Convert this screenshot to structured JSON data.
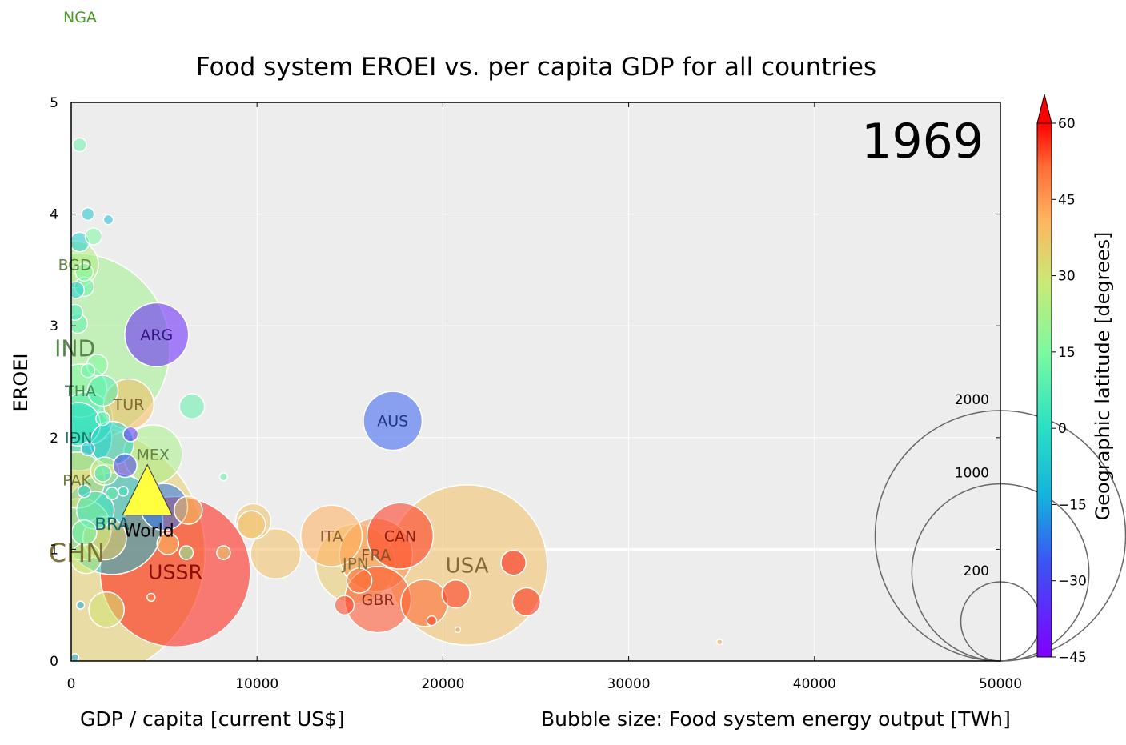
{
  "chart_data": {
    "type": "scatter",
    "title": "Food system EROEI vs. per capita GDP for all countries",
    "year_label": "1969",
    "stray_label": "NGA",
    "xlabel": "GDP / capita [current US$]",
    "ylabel": "EROEI",
    "size_label": "Bubble size: Food system energy output [TWh]",
    "colorbar_label": "Geographic latitude [degrees]",
    "xlim": [
      0,
      50000
    ],
    "ylim": [
      0,
      5
    ],
    "x_ticks": [
      0,
      10000,
      20000,
      30000,
      40000,
      50000
    ],
    "y_ticks": [
      0,
      1,
      2,
      3,
      4,
      5
    ],
    "colorbar_ticks": [
      60,
      45,
      30,
      15,
      0,
      -15,
      -30,
      -45
    ],
    "colorbar_range": [
      -45,
      60
    ],
    "grid": true,
    "reference_line_y": 1.0,
    "size_legend": [
      200,
      1000,
      2000
    ],
    "labeled_points": [
      {
        "label": "CHN",
        "x": 300,
        "y": 0.97,
        "size": 2100,
        "lat": 35
      },
      {
        "label": "IND",
        "x": 200,
        "y": 2.8,
        "size": 1150,
        "lat": 21
      },
      {
        "label": "USSR",
        "x": 5600,
        "y": 0.8,
        "size": 720,
        "lat": 58
      },
      {
        "label": "USA",
        "x": 21300,
        "y": 0.86,
        "size": 820,
        "lat": 38
      },
      {
        "label": "FRA",
        "x": 16400,
        "y": 0.95,
        "size": 170,
        "lat": 46
      },
      {
        "label": "JPN",
        "x": 15300,
        "y": 0.87,
        "size": 200,
        "lat": 36
      },
      {
        "label": "ITA",
        "x": 14000,
        "y": 1.12,
        "size": 120,
        "lat": 42
      },
      {
        "label": "GBR",
        "x": 16500,
        "y": 0.55,
        "size": 140,
        "lat": 54
      },
      {
        "label": "CAN",
        "x": 17700,
        "y": 1.12,
        "size": 140,
        "lat": 56
      },
      {
        "label": "AUS",
        "x": 17300,
        "y": 2.15,
        "size": 110,
        "lat": -25
      },
      {
        "label": "ARG",
        "x": 4600,
        "y": 2.92,
        "size": 130,
        "lat": -38
      },
      {
        "label": "TUR",
        "x": 3100,
        "y": 2.3,
        "size": 80,
        "lat": 39
      },
      {
        "label": "MEX",
        "x": 4400,
        "y": 1.85,
        "size": 110,
        "lat": 23
      },
      {
        "label": "BRA",
        "x": 2200,
        "y": 1.23,
        "size": 330,
        "lat": -10
      },
      {
        "label": "IDN",
        "x": 400,
        "y": 2.0,
        "size": 140,
        "lat": -2
      },
      {
        "label": "THA",
        "x": 500,
        "y": 2.42,
        "size": 90,
        "lat": 15
      },
      {
        "label": "BGD",
        "x": 200,
        "y": 3.55,
        "size": 70,
        "lat": 24
      },
      {
        "label": "PAK",
        "x": 300,
        "y": 1.62,
        "size": 100,
        "lat": 30
      }
    ],
    "world_point": {
      "label": "World",
      "x": 4100,
      "y": 1.55
    },
    "other_points": [
      {
        "x": 450,
        "y": 4.62,
        "size": 6,
        "lat": 12
      },
      {
        "x": 900,
        "y": 4.0,
        "size": 5,
        "lat": -8
      },
      {
        "x": 2000,
        "y": 3.95,
        "size": 3,
        "lat": -10
      },
      {
        "x": 450,
        "y": 3.75,
        "size": 12,
        "lat": -5
      },
      {
        "x": 1200,
        "y": 3.8,
        "size": 9,
        "lat": 15
      },
      {
        "x": 700,
        "y": 3.48,
        "size": 10,
        "lat": 15
      },
      {
        "x": 700,
        "y": 3.35,
        "size": 12,
        "lat": 12
      },
      {
        "x": 250,
        "y": 3.32,
        "size": 9,
        "lat": -5
      },
      {
        "x": 200,
        "y": 3.12,
        "size": 8,
        "lat": 5
      },
      {
        "x": 350,
        "y": 3.02,
        "size": 12,
        "lat": 10
      },
      {
        "x": 1400,
        "y": 2.65,
        "size": 14,
        "lat": 15
      },
      {
        "x": 900,
        "y": 2.6,
        "size": 6,
        "lat": 12
      },
      {
        "x": 1700,
        "y": 2.42,
        "size": 30,
        "lat": 8
      },
      {
        "x": 6500,
        "y": 2.28,
        "size": 20,
        "lat": 10
      },
      {
        "x": 800,
        "y": 2.17,
        "size": 90,
        "lat": 8
      },
      {
        "x": 400,
        "y": 2.12,
        "size": 60,
        "lat": 0
      },
      {
        "x": 1700,
        "y": 2.17,
        "size": 6,
        "lat": 10
      },
      {
        "x": 3200,
        "y": 2.03,
        "size": 7,
        "lat": -35
      },
      {
        "x": 2200,
        "y": 1.95,
        "size": 60,
        "lat": -5
      },
      {
        "x": 900,
        "y": 1.9,
        "size": 6,
        "lat": -10
      },
      {
        "x": 2900,
        "y": 1.75,
        "size": 18,
        "lat": -30
      },
      {
        "x": 1800,
        "y": 1.7,
        "size": 25,
        "lat": 25
      },
      {
        "x": 1700,
        "y": 1.68,
        "size": 9,
        "lat": 5
      },
      {
        "x": 2800,
        "y": 1.52,
        "size": 3,
        "lat": 5
      },
      {
        "x": 2200,
        "y": 1.5,
        "size": 5,
        "lat": 10
      },
      {
        "x": 700,
        "y": 1.52,
        "size": 5,
        "lat": -5
      },
      {
        "x": 8200,
        "y": 1.65,
        "size": 2,
        "lat": 10
      },
      {
        "x": 1300,
        "y": 1.35,
        "size": 45,
        "lat": 5
      },
      {
        "x": 5000,
        "y": 1.38,
        "size": 70,
        "lat": -22
      },
      {
        "x": 6300,
        "y": 1.35,
        "size": 25,
        "lat": 38
      },
      {
        "x": 9700,
        "y": 1.22,
        "size": 25,
        "lat": 38
      },
      {
        "x": 9800,
        "y": 1.25,
        "size": 40,
        "lat": 38
      },
      {
        "x": 500,
        "y": 1.18,
        "size": 120,
        "lat": 28
      },
      {
        "x": 700,
        "y": 1.15,
        "size": 20,
        "lat": 12
      },
      {
        "x": 1800,
        "y": 1.1,
        "size": 60,
        "lat": 35
      },
      {
        "x": 5200,
        "y": 1.05,
        "size": 15,
        "lat": 40
      },
      {
        "x": 6200,
        "y": 0.97,
        "size": 6,
        "lat": 15
      },
      {
        "x": 8200,
        "y": 0.97,
        "size": 6,
        "lat": 35
      },
      {
        "x": 11000,
        "y": 0.96,
        "size": 80,
        "lat": 38
      },
      {
        "x": 800,
        "y": 0.92,
        "size": 30,
        "lat": 28
      },
      {
        "x": 23800,
        "y": 0.88,
        "size": 20,
        "lat": 58
      },
      {
        "x": 15500,
        "y": 0.72,
        "size": 20,
        "lat": 50
      },
      {
        "x": 20700,
        "y": 0.6,
        "size": 25,
        "lat": 56
      },
      {
        "x": 19000,
        "y": 0.52,
        "size": 70,
        "lat": 52
      },
      {
        "x": 24500,
        "y": 0.53,
        "size": 25,
        "lat": 57
      },
      {
        "x": 14700,
        "y": 0.5,
        "size": 12,
        "lat": 55
      },
      {
        "x": 4300,
        "y": 0.57,
        "size": 2,
        "lat": 48
      },
      {
        "x": 1900,
        "y": 0.46,
        "size": 40,
        "lat": 30
      },
      {
        "x": 500,
        "y": 0.5,
        "size": 2,
        "lat": -15
      },
      {
        "x": 19400,
        "y": 0.36,
        "size": 3,
        "lat": 55
      },
      {
        "x": 20800,
        "y": 0.28,
        "size": 1,
        "lat": 45
      },
      {
        "x": 34900,
        "y": 0.17,
        "size": 1,
        "lat": 45
      },
      {
        "x": 200,
        "y": 0.03,
        "size": 2,
        "lat": -15
      }
    ]
  }
}
